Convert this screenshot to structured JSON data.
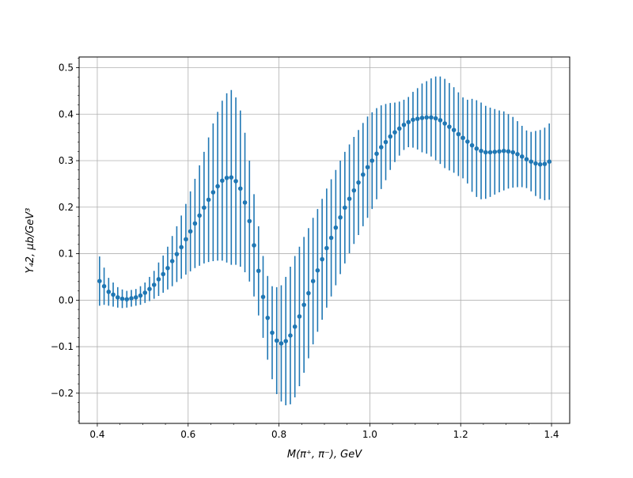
{
  "chart_data": {
    "type": "scatter",
    "title": "",
    "xlabel": "M(π⁺, π⁻), GeV",
    "ylabel": "Y₄2, μb/GeV³",
    "xlim": [
      0.36,
      1.44
    ],
    "ylim": [
      -0.265,
      0.523
    ],
    "xticks": [
      0.4,
      0.6,
      0.8,
      1.0,
      1.2,
      1.4
    ],
    "xtick_labels": [
      "0.4",
      "0.6",
      "0.8",
      "1.0",
      "1.2",
      "1.4"
    ],
    "yticks": [
      -0.2,
      -0.1,
      0.0,
      0.1,
      0.2,
      0.3,
      0.4,
      0.5
    ],
    "ytick_labels": [
      "−0.2",
      "−0.1",
      "0.0",
      "0.1",
      "0.2",
      "0.3",
      "0.4",
      "0.5"
    ],
    "grid": true,
    "marker_color": "#1f77b4",
    "series": [
      {
        "x": [
          0.405,
          0.415,
          0.425,
          0.435,
          0.445,
          0.455,
          0.465,
          0.475,
          0.485,
          0.495,
          0.505,
          0.515,
          0.525,
          0.535,
          0.545,
          0.555,
          0.565,
          0.575,
          0.585,
          0.595,
          0.605,
          0.615,
          0.625,
          0.635,
          0.645,
          0.655,
          0.665,
          0.675,
          0.685,
          0.695,
          0.705,
          0.715,
          0.725,
          0.735,
          0.745,
          0.755,
          0.765,
          0.775,
          0.785,
          0.795,
          0.805,
          0.815,
          0.825,
          0.835,
          0.845,
          0.855,
          0.865,
          0.875,
          0.885,
          0.895,
          0.905,
          0.915,
          0.925,
          0.935,
          0.945,
          0.955,
          0.965,
          0.975,
          0.985,
          0.995,
          1.005,
          1.015,
          1.025,
          1.035,
          1.045,
          1.055,
          1.065,
          1.075,
          1.085,
          1.095,
          1.105,
          1.115,
          1.125,
          1.135,
          1.145,
          1.155,
          1.165,
          1.175,
          1.185,
          1.195,
          1.205,
          1.215,
          1.225,
          1.235,
          1.245,
          1.255,
          1.265,
          1.275,
          1.285,
          1.295,
          1.305,
          1.315,
          1.325,
          1.335,
          1.345,
          1.355,
          1.365,
          1.375,
          1.385,
          1.395
        ],
        "y": [
          0.041,
          0.03,
          0.018,
          0.012,
          0.006,
          0.003,
          0.002,
          0.004,
          0.006,
          0.01,
          0.016,
          0.024,
          0.033,
          0.045,
          0.056,
          0.069,
          0.084,
          0.099,
          0.114,
          0.131,
          0.148,
          0.165,
          0.182,
          0.199,
          0.216,
          0.232,
          0.245,
          0.257,
          0.263,
          0.264,
          0.256,
          0.24,
          0.21,
          0.17,
          0.118,
          0.063,
          0.007,
          -0.038,
          -0.07,
          -0.087,
          -0.093,
          -0.088,
          -0.076,
          -0.057,
          -0.035,
          -0.01,
          0.015,
          0.041,
          0.064,
          0.088,
          0.112,
          0.134,
          0.156,
          0.178,
          0.199,
          0.218,
          0.236,
          0.253,
          0.27,
          0.286,
          0.3,
          0.315,
          0.329,
          0.34,
          0.352,
          0.361,
          0.369,
          0.377,
          0.383,
          0.388,
          0.39,
          0.392,
          0.393,
          0.393,
          0.391,
          0.387,
          0.38,
          0.373,
          0.366,
          0.357,
          0.349,
          0.341,
          0.333,
          0.326,
          0.321,
          0.318,
          0.318,
          0.319,
          0.32,
          0.321,
          0.32,
          0.318,
          0.314,
          0.309,
          0.303,
          0.298,
          0.294,
          0.292,
          0.293,
          0.298
        ],
        "err": [
          0.053,
          0.04,
          0.03,
          0.026,
          0.022,
          0.02,
          0.018,
          0.018,
          0.018,
          0.02,
          0.022,
          0.026,
          0.03,
          0.036,
          0.04,
          0.046,
          0.054,
          0.06,
          0.068,
          0.076,
          0.086,
          0.096,
          0.108,
          0.12,
          0.134,
          0.148,
          0.16,
          0.172,
          0.182,
          0.188,
          0.18,
          0.168,
          0.15,
          0.13,
          0.11,
          0.096,
          0.088,
          0.09,
          0.1,
          0.115,
          0.125,
          0.138,
          0.148,
          0.152,
          0.15,
          0.146,
          0.14,
          0.136,
          0.132,
          0.13,
          0.128,
          0.126,
          0.124,
          0.122,
          0.12,
          0.117,
          0.115,
          0.113,
          0.111,
          0.109,
          0.104,
          0.098,
          0.09,
          0.082,
          0.072,
          0.064,
          0.058,
          0.054,
          0.054,
          0.06,
          0.066,
          0.074,
          0.078,
          0.084,
          0.09,
          0.094,
          0.096,
          0.094,
          0.092,
          0.09,
          0.087,
          0.09,
          0.1,
          0.104,
          0.104,
          0.1,
          0.096,
          0.092,
          0.088,
          0.085,
          0.08,
          0.076,
          0.071,
          0.066,
          0.062,
          0.064,
          0.07,
          0.074,
          0.078,
          0.082
        ]
      }
    ]
  }
}
